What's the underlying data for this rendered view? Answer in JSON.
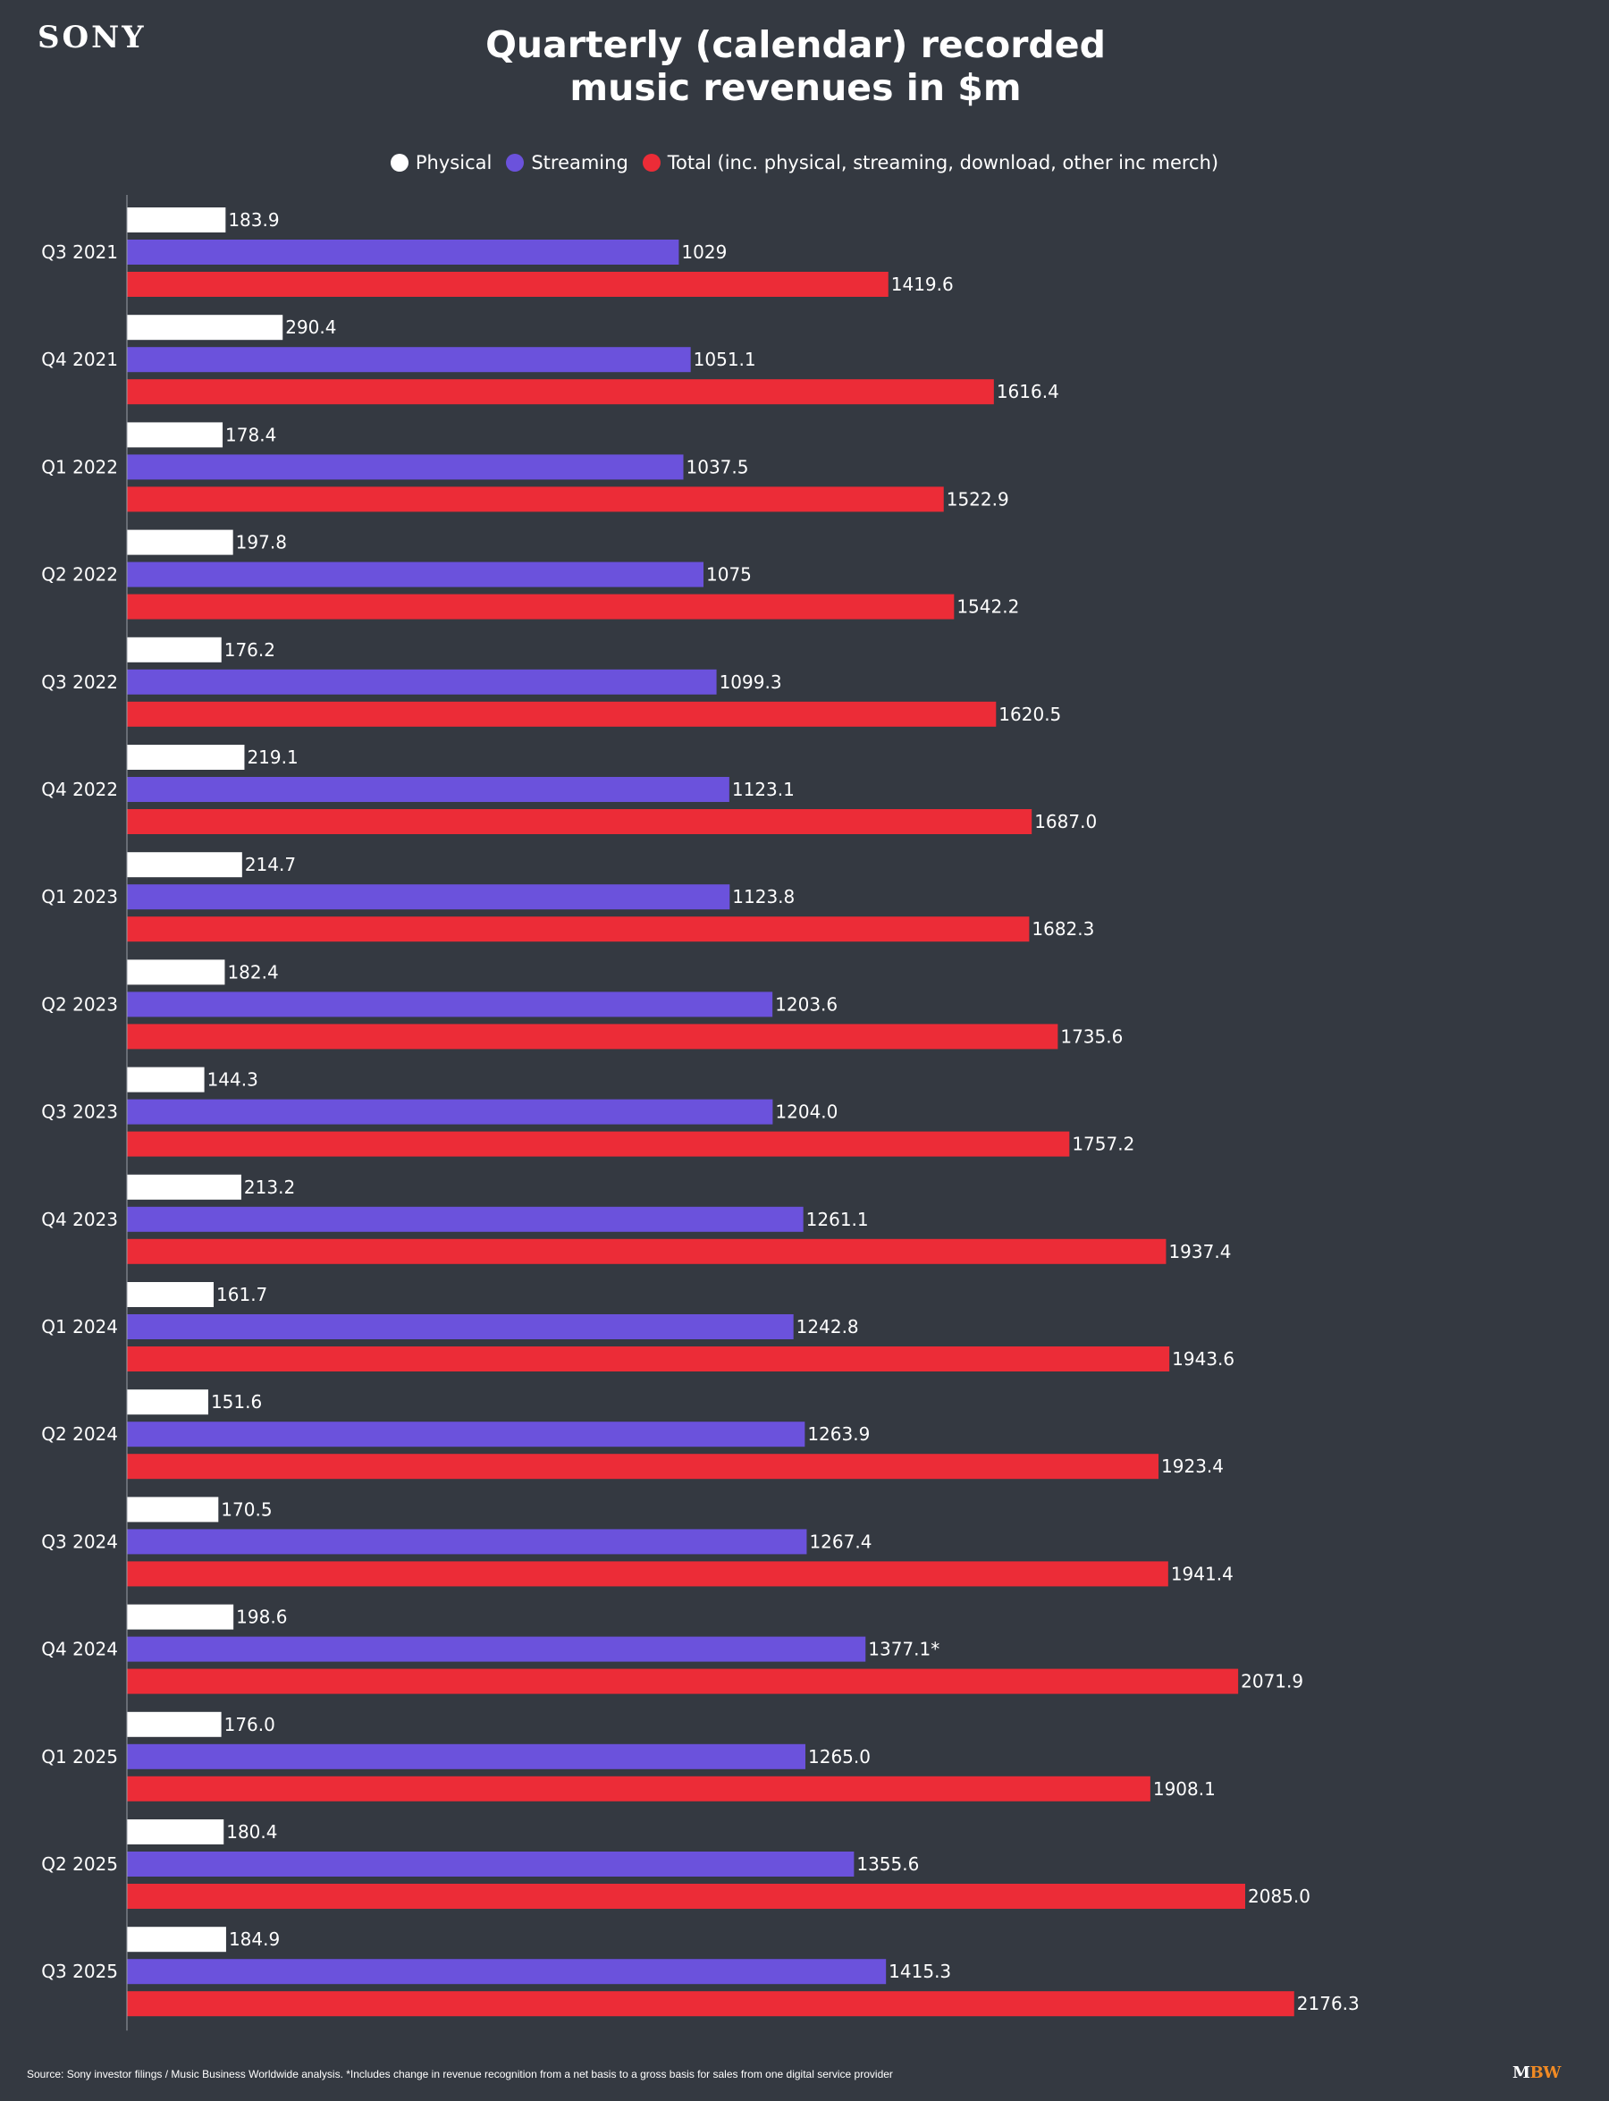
{
  "brand": {
    "logo_text": "SONY",
    "publisher_mark_part1": "M",
    "publisher_mark_part2": "BW",
    "publisher_color_1": "#ffffff",
    "publisher_color_2": "#f08a24"
  },
  "colors": {
    "background": "#343941",
    "physical": "#ffffff",
    "streaming": "#6b52dc",
    "total": "#ec2c37",
    "axis": "#9a9ea6",
    "label_text": "#ffffff"
  },
  "footer": {
    "source": "Source: Sony investor filings / Music Business Worldwide analysis. *Includes change in revenue recognition from a net basis to a gross basis for sales from one digital service provider"
  },
  "chart_data": {
    "type": "bar",
    "orientation": "horizontal",
    "title_line1": "Quarterly (calendar) recorded",
    "title_line2": "music revenues in $m",
    "xlabel": "",
    "ylabel": "",
    "grid": false,
    "legend_position": "top-center",
    "xlim": [
      0,
      2500
    ],
    "categories": [
      "Q3 2021",
      "Q4 2021",
      "Q1 2022",
      "Q2 2022",
      "Q3 2022",
      "Q4 2022",
      "Q1 2023",
      "Q2 2023",
      "Q3 2023",
      "Q4 2023",
      "Q1 2024",
      "Q2 2024",
      "Q3 2024",
      "Q4 2024",
      "Q1 2025",
      "Q2 2025",
      "Q3 2025"
    ],
    "series": [
      {
        "name": "Physical",
        "color_key": "physical",
        "values": [
          183.9,
          290.4,
          178.4,
          197.8,
          176.2,
          219.1,
          214.7,
          182.4,
          144.3,
          213.2,
          161.7,
          151.6,
          170.5,
          198.6,
          176.0,
          180.4,
          184.9
        ],
        "labels": [
          "183.9",
          "290.4",
          "178.4",
          "197.8",
          "176.2",
          "219.1",
          "214.7",
          "182.4",
          "144.3",
          "213.2",
          "161.7",
          "151.6",
          "170.5",
          "198.6",
          "176.0",
          "180.4",
          "184.9"
        ]
      },
      {
        "name": "Streaming",
        "color_key": "streaming",
        "values": [
          1029,
          1051.1,
          1037.5,
          1075,
          1099.3,
          1123.1,
          1123.8,
          1203.6,
          1204.0,
          1261.1,
          1242.8,
          1263.9,
          1267.4,
          1377.1,
          1265.0,
          1355.6,
          1415.3
        ],
        "labels": [
          "1029",
          "1051.1",
          "1037.5",
          "1075",
          "1099.3",
          "1123.1",
          "1123.8",
          "1203.6",
          "1204.0",
          "1261.1",
          "1242.8",
          "1263.9",
          "1267.4",
          "1377.1*",
          "1265.0",
          "1355.6",
          "1415.3"
        ]
      },
      {
        "name": "Total (inc. physical, streaming, download, other inc merch)",
        "color_key": "total",
        "values": [
          1419.6,
          1616.4,
          1522.9,
          1542.2,
          1620.5,
          1687.0,
          1682.3,
          1735.6,
          1757.2,
          1937.4,
          1943.6,
          1923.4,
          1941.4,
          2071.9,
          1908.1,
          2085.0,
          2176.3
        ],
        "labels": [
          "1419.6",
          "1616.4",
          "1522.9",
          "1542.2",
          "1620.5",
          "1687.0",
          "1682.3",
          "1735.6",
          "1757.2",
          "1937.4",
          "1943.6",
          "1923.4",
          "1941.4",
          "2071.9",
          "1908.1",
          "2085.0",
          "2176.3"
        ]
      }
    ]
  }
}
